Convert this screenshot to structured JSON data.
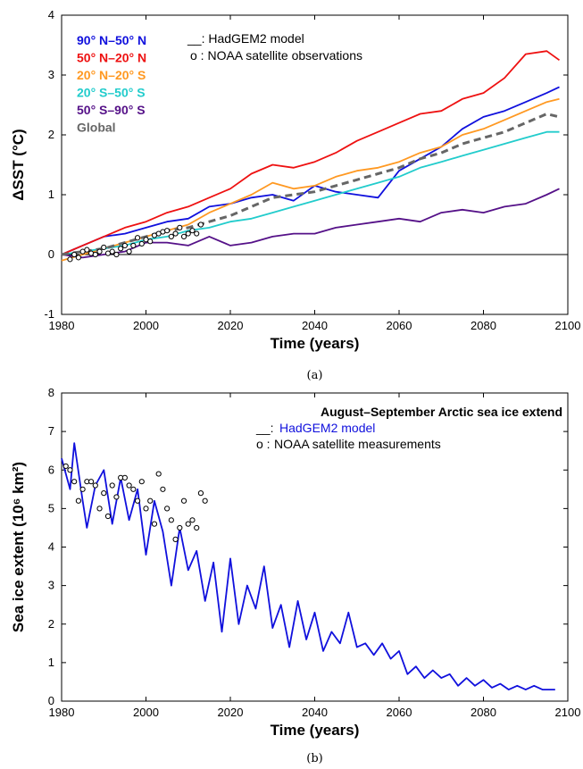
{
  "panels": {
    "a": {
      "caption": "(a)"
    },
    "b": {
      "caption": "(b)"
    }
  },
  "chart_data": [
    {
      "type": "line",
      "xlabel": "Time (years)",
      "ylabel": "ΔSST (°C)",
      "xlim": [
        1980,
        2100
      ],
      "ylim": [
        -1,
        4
      ],
      "x_ticks": [
        1980,
        2000,
        2020,
        2040,
        2060,
        2080,
        2100
      ],
      "y_ticks": [
        -1,
        0,
        1,
        2,
        3,
        4
      ],
      "grid": false,
      "legend_position": "top-left",
      "model_legend": "__: HadGEM2 model",
      "obs_legend": "o : NOAA satellite observations",
      "series": [
        {
          "name": "90° N–50° N",
          "color": "#1010dd",
          "x": [
            1980,
            1985,
            1990,
            1995,
            2000,
            2005,
            2010,
            2015,
            2020,
            2025,
            2030,
            2035,
            2040,
            2045,
            2050,
            2055,
            2060,
            2065,
            2070,
            2075,
            2080,
            2085,
            2090,
            2095,
            2098
          ],
          "values": [
            0,
            0.15,
            0.3,
            0.35,
            0.45,
            0.55,
            0.6,
            0.8,
            0.85,
            0.95,
            1.0,
            0.9,
            1.15,
            1.05,
            1.0,
            0.95,
            1.4,
            1.6,
            1.8,
            2.1,
            2.3,
            2.4,
            2.55,
            2.7,
            2.8
          ]
        },
        {
          "name": "50° N–20° N",
          "color": "#ee1111",
          "x": [
            1980,
            1985,
            1990,
            1995,
            2000,
            2005,
            2010,
            2015,
            2020,
            2025,
            2030,
            2035,
            2040,
            2045,
            2050,
            2055,
            2060,
            2065,
            2070,
            2075,
            2080,
            2085,
            2090,
            2095,
            2098
          ],
          "values": [
            0,
            0.15,
            0.3,
            0.45,
            0.55,
            0.7,
            0.8,
            0.95,
            1.1,
            1.35,
            1.5,
            1.45,
            1.55,
            1.7,
            1.9,
            2.05,
            2.2,
            2.35,
            2.4,
            2.6,
            2.7,
            2.95,
            3.35,
            3.4,
            3.25
          ]
        },
        {
          "name": "20° N–20° S",
          "color": "#ff9922",
          "x": [
            1980,
            1985,
            1990,
            1995,
            2000,
            2005,
            2010,
            2015,
            2020,
            2025,
            2030,
            2035,
            2040,
            2045,
            2050,
            2055,
            2060,
            2065,
            2070,
            2075,
            2080,
            2085,
            2090,
            2095,
            2098
          ],
          "values": [
            -0.1,
            0.0,
            0.1,
            0.2,
            0.3,
            0.4,
            0.5,
            0.7,
            0.85,
            1.0,
            1.2,
            1.1,
            1.15,
            1.3,
            1.4,
            1.45,
            1.55,
            1.7,
            1.8,
            2.0,
            2.1,
            2.25,
            2.4,
            2.55,
            2.6
          ]
        },
        {
          "name": "20° S–50° S",
          "color": "#22cccc",
          "x": [
            1980,
            1985,
            1990,
            1995,
            2000,
            2005,
            2010,
            2015,
            2020,
            2025,
            2030,
            2035,
            2040,
            2045,
            2050,
            2055,
            2060,
            2065,
            2070,
            2075,
            2080,
            2085,
            2090,
            2095,
            2098
          ],
          "values": [
            0,
            0.05,
            0.1,
            0.15,
            0.25,
            0.3,
            0.4,
            0.45,
            0.55,
            0.6,
            0.7,
            0.8,
            0.9,
            1.0,
            1.1,
            1.2,
            1.3,
            1.45,
            1.55,
            1.65,
            1.75,
            1.85,
            1.95,
            2.05,
            2.05
          ]
        },
        {
          "name": "50° S–90° S",
          "color": "#551188",
          "x": [
            1980,
            1985,
            1990,
            1995,
            2000,
            2005,
            2010,
            2015,
            2020,
            2025,
            2030,
            2035,
            2040,
            2045,
            2050,
            2055,
            2060,
            2065,
            2070,
            2075,
            2080,
            2085,
            2090,
            2095,
            2098
          ],
          "values": [
            0,
            -0.05,
            0.0,
            0.05,
            0.2,
            0.2,
            0.15,
            0.3,
            0.15,
            0.2,
            0.3,
            0.35,
            0.35,
            0.45,
            0.5,
            0.55,
            0.6,
            0.55,
            0.7,
            0.75,
            0.7,
            0.8,
            0.85,
            1.0,
            1.1
          ]
        },
        {
          "name": "Global",
          "color": "#666666",
          "dashed": true,
          "x": [
            1980,
            1985,
            1990,
            1995,
            2000,
            2005,
            2010,
            2015,
            2020,
            2025,
            2030,
            2035,
            2040,
            2045,
            2050,
            2055,
            2060,
            2065,
            2070,
            2075,
            2080,
            2085,
            2090,
            2095,
            2098
          ],
          "values": [
            0,
            0.05,
            0.1,
            0.2,
            0.3,
            0.4,
            0.45,
            0.55,
            0.65,
            0.8,
            0.95,
            1.0,
            1.05,
            1.15,
            1.25,
            1.35,
            1.45,
            1.6,
            1.7,
            1.85,
            1.95,
            2.05,
            2.2,
            2.35,
            2.3
          ]
        }
      ],
      "observations": {
        "name": "NOAA satellite observations",
        "x": [
          1982,
          1983,
          1984,
          1985,
          1986,
          1987,
          1988,
          1989,
          1990,
          1991,
          1992,
          1993,
          1994,
          1995,
          1996,
          1997,
          1998,
          1999,
          2000,
          2001,
          2002,
          2003,
          2004,
          2005,
          2006,
          2007,
          2008,
          2009,
          2010,
          2011,
          2012,
          2013
        ],
        "values": [
          -0.08,
          0.0,
          -0.05,
          0.05,
          0.08,
          0.02,
          0.0,
          0.05,
          0.12,
          0.02,
          0.05,
          0.0,
          0.1,
          0.15,
          0.05,
          0.15,
          0.28,
          0.18,
          0.25,
          0.22,
          0.32,
          0.35,
          0.38,
          0.4,
          0.3,
          0.35,
          0.45,
          0.3,
          0.35,
          0.4,
          0.35,
          0.5
        ]
      }
    },
    {
      "type": "line",
      "title": "August–September Arctic sea ice extend",
      "xlabel": "Time (years)",
      "ylabel": "Sea ice extent (10⁶ km²)",
      "xlim": [
        1980,
        2100
      ],
      "ylim": [
        0,
        8
      ],
      "x_ticks": [
        1980,
        2000,
        2020,
        2040,
        2060,
        2080,
        2100
      ],
      "y_ticks": [
        0,
        1,
        2,
        3,
        4,
        5,
        6,
        7,
        8
      ],
      "grid": false,
      "legend_position": "top-right",
      "series": [
        {
          "name": "HadGEM2 model",
          "color": "#1010dd",
          "x": [
            1980,
            1982,
            1983,
            1985,
            1986,
            1988,
            1990,
            1992,
            1994,
            1996,
            1998,
            2000,
            2002,
            2004,
            2006,
            2008,
            2010,
            2012,
            2014,
            2016,
            2018,
            2020,
            2022,
            2024,
            2026,
            2028,
            2030,
            2032,
            2034,
            2036,
            2038,
            2040,
            2042,
            2044,
            2046,
            2048,
            2050,
            2052,
            2054,
            2056,
            2058,
            2060,
            2062,
            2064,
            2066,
            2068,
            2070,
            2072,
            2074,
            2076,
            2078,
            2080,
            2082,
            2084,
            2086,
            2088,
            2090,
            2092,
            2094,
            2096,
            2097
          ],
          "values": [
            6.3,
            5.5,
            6.7,
            5.2,
            4.5,
            5.6,
            6.0,
            4.6,
            5.8,
            4.7,
            5.5,
            3.8,
            5.2,
            4.4,
            3.0,
            4.5,
            3.4,
            3.9,
            2.6,
            3.6,
            1.8,
            3.7,
            2.0,
            3.0,
            2.4,
            3.5,
            1.9,
            2.5,
            1.4,
            2.6,
            1.6,
            2.3,
            1.3,
            1.8,
            1.5,
            2.3,
            1.4,
            1.5,
            1.2,
            1.5,
            1.1,
            1.3,
            0.7,
            0.9,
            0.6,
            0.8,
            0.6,
            0.7,
            0.4,
            0.6,
            0.4,
            0.55,
            0.35,
            0.45,
            0.3,
            0.4,
            0.3,
            0.4,
            0.3,
            0.3,
            0.3
          ]
        }
      ],
      "observations": {
        "name": "NOAA satellite measurements",
        "x": [
          1981,
          1982,
          1983,
          1984,
          1985,
          1986,
          1987,
          1988,
          1989,
          1990,
          1991,
          1992,
          1993,
          1994,
          1995,
          1996,
          1997,
          1998,
          1999,
          2000,
          2001,
          2002,
          2003,
          2004,
          2005,
          2006,
          2007,
          2008,
          2009,
          2010,
          2011,
          2012,
          2013,
          2014
        ],
        "values": [
          6.1,
          6.0,
          5.7,
          5.2,
          5.5,
          5.7,
          5.7,
          5.6,
          5.0,
          5.4,
          4.8,
          5.6,
          5.3,
          5.8,
          5.8,
          5.6,
          5.5,
          5.2,
          5.7,
          5.0,
          5.2,
          4.6,
          5.9,
          5.5,
          5.0,
          4.7,
          4.2,
          4.5,
          5.2,
          4.6,
          4.7,
          4.5,
          5.4,
          5.2
        ]
      }
    }
  ]
}
